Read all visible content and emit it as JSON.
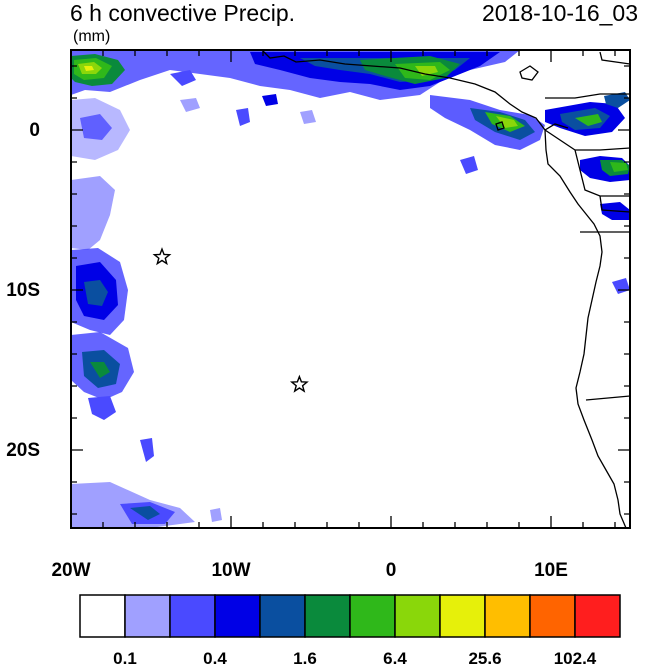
{
  "title": "6 h convective Precip.",
  "date": "2018-10-16_03",
  "units": "(mm)",
  "y_axis_labels": [
    "0",
    "10S",
    "20S"
  ],
  "x_axis_labels": [
    "20W",
    "10W",
    "0",
    "10E"
  ],
  "colorbar": {
    "colors": [
      "#ffffff",
      "#a0a0ff",
      "#4a4aff",
      "#0000e6",
      "#0a4fa0",
      "#0a8a3c",
      "#2fb81a",
      "#8ad70a",
      "#e6f00a",
      "#ffbe00",
      "#ff6400",
      "#ff1e1e"
    ],
    "labels": [
      "0.1",
      "0.4",
      "1.6",
      "6.4",
      "25.6",
      "102.4"
    ]
  },
  "markers": [
    {
      "name": "star-marker-1",
      "lon": -14.3,
      "lat": -8.0
    },
    {
      "name": "star-marker-2",
      "lon": -5.7,
      "lat": -16.0
    }
  ]
}
